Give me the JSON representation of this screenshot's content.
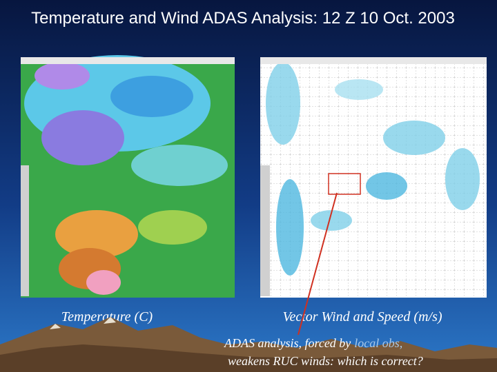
{
  "title": "Temperature and Wind ADAS Analysis: 12 Z 10 Oct. 2003",
  "left_panel": {
    "caption": "Temperature (C)"
  },
  "right_panel": {
    "caption": "Vector Wind and Speed (m/s)"
  },
  "annotation": {
    "line1": [
      "ADAS analysis, forced by",
      "local obs,"
    ],
    "line2": "weakens RUC winds: which is correct?"
  }
}
